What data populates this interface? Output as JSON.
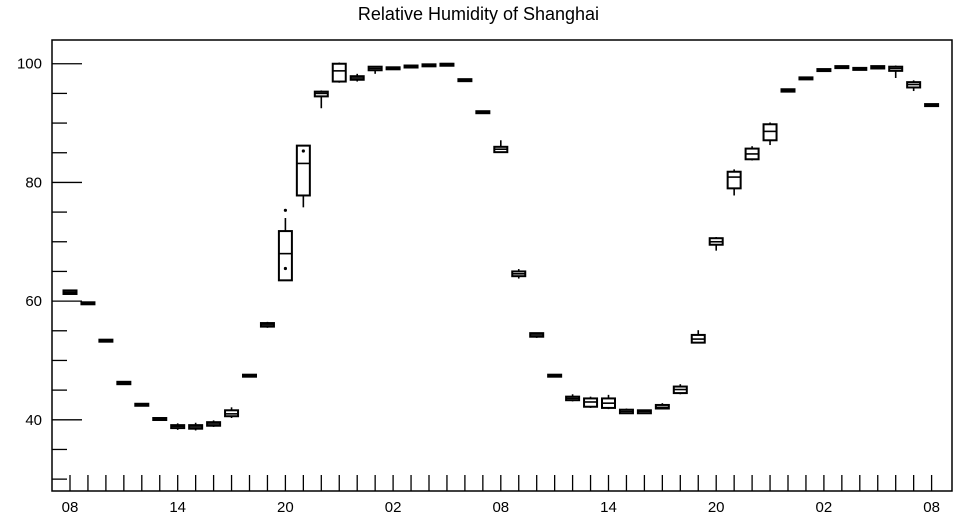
{
  "chart_data": {
    "type": "box",
    "title": "Relative Humidity of Shanghai",
    "xlabel": "",
    "ylabel": "",
    "ylim": [
      28,
      104
    ],
    "y_ticks": [
      40,
      60,
      80,
      100
    ],
    "x_tick_labels": [
      "08",
      "14",
      "20",
      "02",
      "08",
      "14",
      "20",
      "02",
      "08"
    ],
    "x_tick_positions": [
      0,
      6,
      12,
      18,
      24,
      30,
      36,
      42,
      48
    ],
    "grid": false,
    "boxes": [
      {
        "x": 0,
        "whisker_low": 61.1,
        "q1": 61.2,
        "median": 61.5,
        "q3": 61.8,
        "whisker_high": 61.9
      },
      {
        "x": 1,
        "whisker_low": 59.5,
        "q1": 59.6,
        "median": 59.7,
        "q3": 59.8,
        "whisker_high": 59.8
      },
      {
        "x": 2,
        "whisker_low": 53.2,
        "q1": 53.3,
        "median": 53.4,
        "q3": 53.5,
        "whisker_high": 53.5
      },
      {
        "x": 3,
        "whisker_low": 45.9,
        "q1": 46.0,
        "median": 46.2,
        "q3": 46.4,
        "whisker_high": 46.5
      },
      {
        "x": 4,
        "whisker_low": 42.3,
        "q1": 42.4,
        "median": 42.5,
        "q3": 42.7,
        "whisker_high": 42.8
      },
      {
        "x": 5,
        "whisker_low": 39.9,
        "q1": 40.0,
        "median": 40.2,
        "q3": 40.3,
        "whisker_high": 40.4
      },
      {
        "x": 6,
        "whisker_low": 38.3,
        "q1": 38.6,
        "median": 38.9,
        "q3": 39.1,
        "whisker_high": 39.4
      },
      {
        "x": 7,
        "whisker_low": 38.2,
        "q1": 38.5,
        "median": 38.8,
        "q3": 39.1,
        "whisker_high": 39.5
      },
      {
        "x": 8,
        "whisker_low": 38.8,
        "q1": 39.0,
        "median": 39.3,
        "q3": 39.6,
        "whisker_high": 39.9
      },
      {
        "x": 9,
        "whisker_low": 40.3,
        "q1": 40.6,
        "median": 41.0,
        "q3": 41.6,
        "whisker_high": 42.1
      },
      {
        "x": 10,
        "whisker_low": 47.3,
        "q1": 47.4,
        "median": 47.5,
        "q3": 47.6,
        "whisker_high": 47.6
      },
      {
        "x": 11,
        "whisker_low": 55.5,
        "q1": 55.7,
        "median": 56.0,
        "q3": 56.3,
        "whisker_high": 56.5
      },
      {
        "x": 12,
        "whisker_low": 63.5,
        "q1": 63.5,
        "median": 68.0,
        "q3": 71.8,
        "whisker_high": 74.0,
        "outliers": [
          75.3,
          65.5
        ]
      },
      {
        "x": 13,
        "whisker_low": 75.8,
        "q1": 77.8,
        "median": 83.2,
        "q3": 86.2,
        "whisker_high": 86.2,
        "outliers": [
          85.3
        ]
      },
      {
        "x": 14,
        "whisker_low": 92.5,
        "q1": 94.5,
        "median": 95.0,
        "q3": 95.3,
        "whisker_high": 95.5
      },
      {
        "x": 15,
        "whisker_low": 96.8,
        "q1": 97.0,
        "median": 98.8,
        "q3": 100.0,
        "whisker_high": 100.2
      },
      {
        "x": 16,
        "whisker_low": 97.0,
        "q1": 97.3,
        "median": 97.6,
        "q3": 97.9,
        "whisker_high": 98.3
      },
      {
        "x": 17,
        "whisker_low": 98.3,
        "q1": 98.9,
        "median": 99.2,
        "q3": 99.5,
        "whisker_high": 99.6
      },
      {
        "x": 18,
        "whisker_low": 99.1,
        "q1": 99.2,
        "median": 99.3,
        "q3": 99.4,
        "whisker_high": 99.5
      },
      {
        "x": 19,
        "whisker_low": 99.4,
        "q1": 99.5,
        "median": 99.6,
        "q3": 99.7,
        "whisker_high": 99.8
      },
      {
        "x": 20,
        "whisker_low": 99.6,
        "q1": 99.7,
        "median": 99.8,
        "q3": 99.9,
        "whisker_high": 100.0
      },
      {
        "x": 21,
        "whisker_low": 99.8,
        "q1": 99.9,
        "median": 100.0,
        "q3": 100.0,
        "whisker_high": 100.1
      },
      {
        "x": 22,
        "whisker_low": 97.1,
        "q1": 97.2,
        "median": 97.3,
        "q3": 97.4,
        "whisker_high": 97.5
      },
      {
        "x": 23,
        "whisker_low": 91.7,
        "q1": 91.8,
        "median": 91.9,
        "q3": 92.0,
        "whisker_high": 92.1
      },
      {
        "x": 24,
        "whisker_low": 85.1,
        "q1": 85.1,
        "median": 85.6,
        "q3": 86.0,
        "whisker_high": 87.1
      },
      {
        "x": 25,
        "whisker_low": 63.8,
        "q1": 64.2,
        "median": 64.6,
        "q3": 65.0,
        "whisker_high": 65.4
      },
      {
        "x": 26,
        "whisker_low": 53.8,
        "q1": 54.0,
        "median": 54.3,
        "q3": 54.6,
        "whisker_high": 54.7
      },
      {
        "x": 27,
        "whisker_low": 47.3,
        "q1": 47.4,
        "median": 47.5,
        "q3": 47.6,
        "whisker_high": 47.7
      },
      {
        "x": 28,
        "whisker_low": 43.1,
        "q1": 43.3,
        "median": 43.6,
        "q3": 43.9,
        "whisker_high": 44.3
      },
      {
        "x": 29,
        "whisker_low": 42.0,
        "q1": 42.2,
        "median": 43.0,
        "q3": 43.6,
        "whisker_high": 43.9
      },
      {
        "x": 30,
        "whisker_low": 41.8,
        "q1": 42.0,
        "median": 42.8,
        "q3": 43.6,
        "whisker_high": 44.2
      },
      {
        "x": 31,
        "whisker_low": 41.0,
        "q1": 41.1,
        "median": 41.4,
        "q3": 41.7,
        "whisker_high": 41.9
      },
      {
        "x": 32,
        "whisker_low": 41.0,
        "q1": 41.1,
        "median": 41.4,
        "q3": 41.6,
        "whisker_high": 41.7
      },
      {
        "x": 33,
        "whisker_low": 41.8,
        "q1": 41.9,
        "median": 42.1,
        "q3": 42.5,
        "whisker_high": 42.8
      },
      {
        "x": 34,
        "whisker_low": 44.3,
        "q1": 44.5,
        "median": 45.1,
        "q3": 45.6,
        "whisker_high": 46.0
      },
      {
        "x": 35,
        "whisker_low": 52.9,
        "q1": 53.0,
        "median": 53.6,
        "q3": 54.3,
        "whisker_high": 55.1
      },
      {
        "x": 36,
        "whisker_low": 68.5,
        "q1": 69.5,
        "median": 70.0,
        "q3": 70.6,
        "whisker_high": 70.8
      },
      {
        "x": 37,
        "whisker_low": 77.8,
        "q1": 79.0,
        "median": 80.9,
        "q3": 81.8,
        "whisker_high": 82.2
      },
      {
        "x": 38,
        "whisker_low": 83.7,
        "q1": 83.9,
        "median": 84.8,
        "q3": 85.7,
        "whisker_high": 86.1
      },
      {
        "x": 39,
        "whisker_low": 86.3,
        "q1": 87.1,
        "median": 88.6,
        "q3": 89.8,
        "whisker_high": 90.1
      },
      {
        "x": 40,
        "whisker_low": 95.2,
        "q1": 95.3,
        "median": 95.5,
        "q3": 95.7,
        "whisker_high": 95.8
      },
      {
        "x": 41,
        "whisker_low": 97.4,
        "q1": 97.5,
        "median": 97.6,
        "q3": 97.7,
        "whisker_high": 97.8
      },
      {
        "x": 42,
        "whisker_low": 98.8,
        "q1": 98.9,
        "median": 99.0,
        "q3": 99.1,
        "whisker_high": 99.2
      },
      {
        "x": 43,
        "whisker_low": 99.3,
        "q1": 99.4,
        "median": 99.5,
        "q3": 99.6,
        "whisker_high": 99.7
      },
      {
        "x": 44,
        "whisker_low": 99.0,
        "q1": 99.1,
        "median": 99.2,
        "q3": 99.3,
        "whisker_high": 99.4
      },
      {
        "x": 45,
        "whisker_low": 99.1,
        "q1": 99.2,
        "median": 99.4,
        "q3": 99.6,
        "whisker_high": 99.7
      },
      {
        "x": 46,
        "whisker_low": 97.6,
        "q1": 98.8,
        "median": 99.2,
        "q3": 99.5,
        "whisker_high": 99.7
      },
      {
        "x": 47,
        "whisker_low": 95.4,
        "q1": 96.0,
        "median": 96.5,
        "q3": 96.9,
        "whisker_high": 97.2
      },
      {
        "x": 48,
        "whisker_low": 92.9,
        "q1": 93.0,
        "median": 93.1,
        "q3": 93.2,
        "whisker_high": 93.2
      }
    ]
  }
}
